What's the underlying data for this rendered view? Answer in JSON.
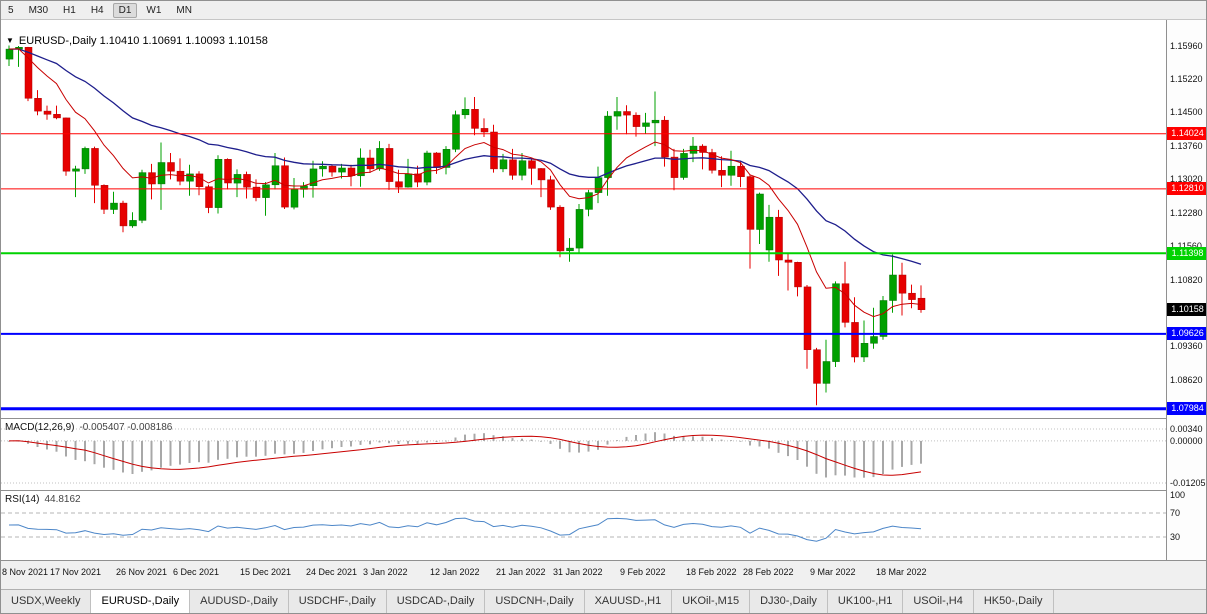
{
  "toolbar": {
    "buttons": [
      {
        "label": "5",
        "active": false
      },
      {
        "label": "M30",
        "active": false
      },
      {
        "label": "H1",
        "active": false
      },
      {
        "label": "H4",
        "active": false
      },
      {
        "label": "D1",
        "active": true
      },
      {
        "label": "W1",
        "active": false
      },
      {
        "label": "MN",
        "active": false
      }
    ]
  },
  "chart_header": {
    "symbol": "EURUSD-,Daily",
    "open": "1.10410",
    "high": "1.10691",
    "low": "1.10093",
    "close": "1.10158"
  },
  "colors": {
    "up": "#00a000",
    "up_border": "#007000",
    "down": "#e60000",
    "down_border": "#b00000",
    "ma_fast": "#c80000",
    "ma_slow": "#1e1e8c",
    "hline_red": "#ff0000",
    "hline_green": "#00d200",
    "hline_blue": "#0000ff",
    "current_badge_bg": "#000000",
    "macd_hist": "#a8a8a8",
    "macd_signal": "#c80000",
    "rsi_line": "#4c86c8",
    "level_dash": "#b4b4b4",
    "grid_dot": "#c0c0c0"
  },
  "chart_data": {
    "type": "candlestick",
    "title": "EURUSD-,Daily",
    "price_axis": {
      "min": 1.0778,
      "max": 1.1652,
      "labels": [
        "1.15960",
        "1.15220",
        "1.14500",
        "1.13760",
        "1.13020",
        "1.12280",
        "1.11560",
        "1.10820",
        "1.10080",
        "1.09360",
        "1.08620"
      ]
    },
    "x_labels": [
      {
        "i": 0,
        "label": "8 Nov 2021"
      },
      {
        "i": 7,
        "label": "17 Nov 2021"
      },
      {
        "i": 14,
        "label": "26 Nov 2021"
      },
      {
        "i": 20,
        "label": "6 Dec 2021"
      },
      {
        "i": 27,
        "label": "15 Dec 2021"
      },
      {
        "i": 34,
        "label": "24 Dec 2021"
      },
      {
        "i": 40,
        "label": "3 Jan 2022"
      },
      {
        "i": 47,
        "label": "12 Jan 2022"
      },
      {
        "i": 54,
        "label": "21 Jan 2022"
      },
      {
        "i": 60,
        "label": "31 Jan 2022"
      },
      {
        "i": 67,
        "label": "9 Feb 2022"
      },
      {
        "i": 74,
        "label": "18 Feb 2022"
      },
      {
        "i": 80,
        "label": "28 Feb 2022"
      },
      {
        "i": 87,
        "label": "9 Mar 2022"
      },
      {
        "i": 94,
        "label": "18 Mar 2022"
      }
    ],
    "candles": [
      [
        1.1566,
        1.1596,
        1.1551,
        1.1588
      ],
      [
        1.1588,
        1.1595,
        1.1549,
        1.1592
      ],
      [
        1.1592,
        1.1593,
        1.1474,
        1.148
      ],
      [
        1.148,
        1.1498,
        1.1443,
        1.1452
      ],
      [
        1.1452,
        1.1464,
        1.1433,
        1.1445
      ],
      [
        1.1445,
        1.1464,
        1.1434,
        1.1437
      ],
      [
        1.1437,
        1.1438,
        1.131,
        1.132
      ],
      [
        1.132,
        1.1332,
        1.1263,
        1.1325
      ],
      [
        1.1325,
        1.1374,
        1.1314,
        1.137
      ],
      [
        1.137,
        1.1374,
        1.125,
        1.1289
      ],
      [
        1.1289,
        1.1291,
        1.1226,
        1.1236
      ],
      [
        1.1236,
        1.1275,
        1.1226,
        1.125
      ],
      [
        1.125,
        1.1255,
        1.1186,
        1.12
      ],
      [
        1.12,
        1.123,
        1.1196,
        1.1212
      ],
      [
        1.1212,
        1.1323,
        1.1206,
        1.1317
      ],
      [
        1.1317,
        1.1336,
        1.1258,
        1.1292
      ],
      [
        1.1292,
        1.1383,
        1.1235,
        1.1339
      ],
      [
        1.1339,
        1.136,
        1.1302,
        1.132
      ],
      [
        1.132,
        1.1348,
        1.1289,
        1.1298
      ],
      [
        1.1298,
        1.1334,
        1.1266,
        1.1314
      ],
      [
        1.1314,
        1.132,
        1.1267,
        1.1286
      ],
      [
        1.1286,
        1.129,
        1.1228,
        1.124
      ],
      [
        1.124,
        1.1355,
        1.1227,
        1.1346
      ],
      [
        1.1346,
        1.1348,
        1.128,
        1.1294
      ],
      [
        1.1294,
        1.1324,
        1.1263,
        1.1313
      ],
      [
        1.1313,
        1.1319,
        1.126,
        1.1285
      ],
      [
        1.1285,
        1.1302,
        1.1254,
        1.1262
      ],
      [
        1.1262,
        1.1296,
        1.1222,
        1.129
      ],
      [
        1.129,
        1.136,
        1.128,
        1.1332
      ],
      [
        1.1332,
        1.135,
        1.1237,
        1.1241
      ],
      [
        1.1241,
        1.1305,
        1.1236,
        1.128
      ],
      [
        1.128,
        1.1296,
        1.1262,
        1.1288
      ],
      [
        1.1288,
        1.1343,
        1.1262,
        1.1325
      ],
      [
        1.1325,
        1.1342,
        1.1308,
        1.1331
      ],
      [
        1.1331,
        1.1335,
        1.1308,
        1.1318
      ],
      [
        1.1318,
        1.1336,
        1.1304,
        1.1327
      ],
      [
        1.1327,
        1.1334,
        1.1287,
        1.131
      ],
      [
        1.131,
        1.137,
        1.1286,
        1.1349
      ],
      [
        1.1349,
        1.1367,
        1.1316,
        1.1325
      ],
      [
        1.1325,
        1.1386,
        1.1321,
        1.137
      ],
      [
        1.137,
        1.138,
        1.1279,
        1.1297
      ],
      [
        1.1297,
        1.1323,
        1.1272,
        1.1285
      ],
      [
        1.1285,
        1.1347,
        1.1284,
        1.1314
      ],
      [
        1.1314,
        1.1332,
        1.1285,
        1.1296
      ],
      [
        1.1296,
        1.1365,
        1.1289,
        1.136
      ],
      [
        1.136,
        1.1362,
        1.1314,
        1.1328
      ],
      [
        1.1328,
        1.1375,
        1.1313,
        1.1368
      ],
      [
        1.1368,
        1.1453,
        1.1362,
        1.1444
      ],
      [
        1.1444,
        1.1482,
        1.1435,
        1.1456
      ],
      [
        1.1456,
        1.1483,
        1.1399,
        1.1414
      ],
      [
        1.1414,
        1.1436,
        1.1395,
        1.1406
      ],
      [
        1.1406,
        1.1422,
        1.1317,
        1.1325
      ],
      [
        1.1325,
        1.1358,
        1.1318,
        1.1345
      ],
      [
        1.1345,
        1.1369,
        1.1301,
        1.1311
      ],
      [
        1.1311,
        1.136,
        1.13,
        1.1343
      ],
      [
        1.1343,
        1.1349,
        1.129,
        1.1326
      ],
      [
        1.1326,
        1.1327,
        1.1263,
        1.1301
      ],
      [
        1.1301,
        1.131,
        1.1235,
        1.1241
      ],
      [
        1.1241,
        1.1245,
        1.1131,
        1.1145
      ],
      [
        1.1145,
        1.1173,
        1.1121,
        1.1151
      ],
      [
        1.1151,
        1.1248,
        1.1141,
        1.1236
      ],
      [
        1.1236,
        1.1279,
        1.1221,
        1.1273
      ],
      [
        1.1273,
        1.133,
        1.125,
        1.1306
      ],
      [
        1.1306,
        1.1452,
        1.1266,
        1.1441
      ],
      [
        1.1441,
        1.1483,
        1.1411,
        1.1451
      ],
      [
        1.1451,
        1.1465,
        1.1401,
        1.1443
      ],
      [
        1.1443,
        1.1449,
        1.1396,
        1.1418
      ],
      [
        1.1418,
        1.1448,
        1.1402,
        1.1426
      ],
      [
        1.1426,
        1.1495,
        1.1375,
        1.1432
      ],
      [
        1.1432,
        1.1441,
        1.133,
        1.1351
      ],
      [
        1.1351,
        1.1369,
        1.1278,
        1.1306
      ],
      [
        1.1306,
        1.1369,
        1.1301,
        1.1359
      ],
      [
        1.1359,
        1.1395,
        1.134,
        1.1375
      ],
      [
        1.1375,
        1.1379,
        1.1324,
        1.1361
      ],
      [
        1.1361,
        1.1369,
        1.1315,
        1.1322
      ],
      [
        1.1322,
        1.1353,
        1.1285,
        1.1311
      ],
      [
        1.1311,
        1.1365,
        1.1288,
        1.1331
      ],
      [
        1.1331,
        1.1343,
        1.1285,
        1.1308
      ],
      [
        1.1308,
        1.1313,
        1.1106,
        1.1192
      ],
      [
        1.1192,
        1.1273,
        1.116,
        1.127
      ],
      [
        1.1147,
        1.1246,
        1.1121,
        1.1219
      ],
      [
        1.1219,
        1.1235,
        1.109,
        1.1125
      ],
      [
        1.1125,
        1.1139,
        1.1058,
        1.112
      ],
      [
        1.112,
        1.1121,
        1.1045,
        1.1066
      ],
      [
        1.1066,
        1.107,
        1.0886,
        1.0928
      ],
      [
        1.0928,
        1.0932,
        1.0806,
        1.0854
      ],
      [
        1.0854,
        1.095,
        1.0834,
        1.0902
      ],
      [
        1.0902,
        1.1078,
        1.089,
        1.1073
      ],
      [
        1.1073,
        1.1121,
        1.0977,
        1.0988
      ],
      [
        1.0988,
        1.1043,
        1.09,
        1.0912
      ],
      [
        1.0912,
        1.0992,
        1.0901,
        1.0942
      ],
      [
        1.0942,
        1.102,
        1.093,
        1.0957
      ],
      [
        1.0957,
        1.1046,
        1.095,
        1.1036
      ],
      [
        1.1036,
        1.1137,
        1.1009,
        1.1092
      ],
      [
        1.1092,
        1.1119,
        1.1003,
        1.1052
      ],
      [
        1.1052,
        1.1071,
        1.1019,
        1.1038
      ],
      [
        1.1041,
        1.10691,
        1.10093,
        1.10158
      ]
    ],
    "overlays": {
      "ma_fast": {
        "type": "ema",
        "period": 10
      },
      "ma_slow": {
        "type": "ema",
        "period": 30
      }
    },
    "hlines": [
      {
        "value": 1.14024,
        "label": "1.14024",
        "color": "#ff0000",
        "width": 1
      },
      {
        "value": 1.1281,
        "label": "1.12810",
        "color": "#ff0000",
        "width": 1
      },
      {
        "value": 1.11398,
        "label": "1.11398",
        "color": "#00d200",
        "width": 2
      },
      {
        "value": 1.09626,
        "label": "1.09626",
        "color": "#0000ff",
        "width": 2
      },
      {
        "value": 1.07984,
        "label": "1.07984",
        "color": "#0000ff",
        "width": 3
      }
    ],
    "current_price": {
      "value": 1.10158,
      "label": "1.10158"
    },
    "indicators": [
      {
        "name": "MACD",
        "name_label": "MACD(12,26,9)",
        "values_label": "-0.005407 -0.008186",
        "params": [
          12,
          26,
          9
        ],
        "axis_labels": [
          "0.00340",
          "0.00000",
          "-0.01205"
        ],
        "range": {
          "max": 0.0034,
          "min": -0.01205
        }
      },
      {
        "name": "RSI",
        "name_label": "RSI(14)",
        "value_label": "44.8162",
        "period": 14,
        "axis_labels": [
          "100",
          "70",
          "30"
        ],
        "levels": [
          70,
          30
        ]
      }
    ]
  },
  "tabs": {
    "items": [
      {
        "label": "USDX,Weekly",
        "active": false
      },
      {
        "label": "EURUSD-,Daily",
        "active": true
      },
      {
        "label": "AUDUSD-,Daily",
        "active": false
      },
      {
        "label": "USDCHF-,Daily",
        "active": false
      },
      {
        "label": "USDCAD-,Daily",
        "active": false
      },
      {
        "label": "USDCNH-,Daily",
        "active": false
      },
      {
        "label": "XAUUSD-,H1",
        "active": false
      },
      {
        "label": "UKOil-,M15",
        "active": false
      },
      {
        "label": "DJ30-,Daily",
        "active": false
      },
      {
        "label": "UK100-,H1",
        "active": false
      },
      {
        "label": "USOil-,H4",
        "active": false
      },
      {
        "label": "HK50-,Daily",
        "active": false
      }
    ]
  }
}
